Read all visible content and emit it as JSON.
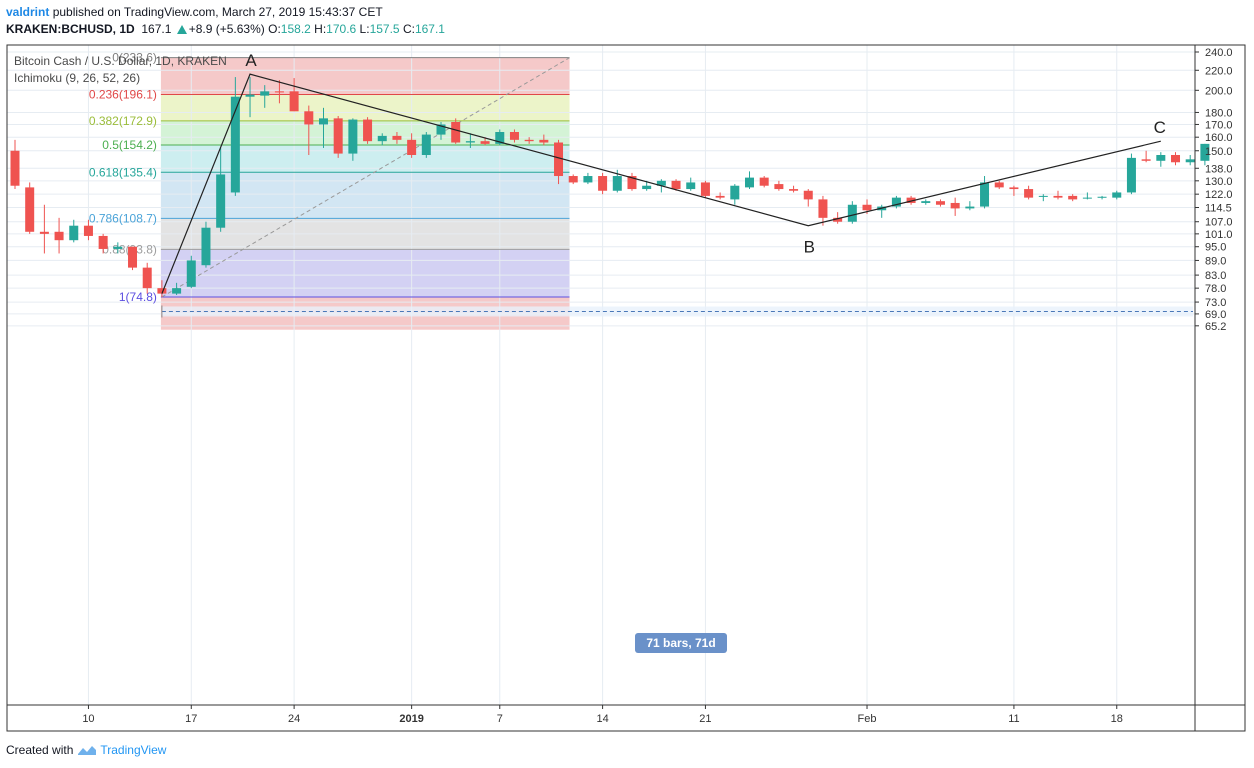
{
  "header": {
    "user": "valdrint",
    "published": "published on TradingView.com, March 27, 2019 15:43:37 CET",
    "symbol": "KRAKEN:BCHUSD, 1D",
    "last": "167.1",
    "change": "+8.9 (+5.63%)",
    "o_label": "O:",
    "o": "158.2",
    "h_label": "H:",
    "h": "170.6",
    "l_label": "L:",
    "l": "157.5",
    "c_label": "C:",
    "c": "167.1"
  },
  "legend": {
    "title": "Bitcoin Cash / U.S. Dollar, 1D, KRAKEN",
    "indicator": "Ichimoku (9, 26, 52, 26)"
  },
  "footer": {
    "created": "Created with",
    "brand": "TradingView"
  },
  "colors": {
    "up": "#26a69a",
    "down": "#ef5350",
    "fib_0": "#808080",
    "fib_0236": "#e04848",
    "fib_0382": "#9bbd3a",
    "fib_05": "#4caf50",
    "fib_0618": "#26a69a",
    "fib_0786": "#4aa3d8",
    "fib_088": "#9e9e9e",
    "fib_1": "#5c4ee0",
    "band_red": "#f5c9c9",
    "band_yellow": "#ecf4c9",
    "band_green": "#d4f3d6",
    "band_teal": "#cdeef0",
    "band_blue": "#d2e6f3",
    "band_gray": "#e3e3e3",
    "band_purple": "#d3d1f3",
    "label_bg": "#6a91c9"
  },
  "chart_data": {
    "type": "candlestick",
    "title": "Bitcoin Cash / U.S. Dollar, 1D, KRAKEN",
    "y_scale": "log",
    "ylim": [
      64,
      244
    ],
    "y_ticks": [
      "240.0",
      "220.0",
      "200.0",
      "180.0",
      "170.0",
      "160.0",
      "150.0",
      "138.0",
      "130.0",
      "122.0",
      "114.5",
      "107.0",
      "101.0",
      "95.0",
      "89.0",
      "83.0",
      "78.0",
      "73.0",
      "69.0",
      "65.2"
    ],
    "x_ticks": [
      {
        "label": "10",
        "bar": 5,
        "bold": false
      },
      {
        "label": "17",
        "bar": 12,
        "bold": false
      },
      {
        "label": "24",
        "bar": 19,
        "bold": false
      },
      {
        "label": "2019",
        "bar": 27,
        "bold": true
      },
      {
        "label": "7",
        "bar": 33,
        "bold": false
      },
      {
        "label": "14",
        "bar": 40,
        "bold": false
      },
      {
        "label": "21",
        "bar": 47,
        "bold": false
      },
      {
        "label": "Feb",
        "bar": 58,
        "bold": false
      },
      {
        "label": "11",
        "bar": 68,
        "bold": false
      },
      {
        "label": "18",
        "bar": 75,
        "bold": false
      }
    ],
    "candles": [
      {
        "date": "Dec 05",
        "o": 150.0,
        "h": 158.0,
        "l": 125.0,
        "c": 127.0
      },
      {
        "date": "Dec 06",
        "o": 126.0,
        "h": 129.0,
        "l": 101.0,
        "c": 102.0
      },
      {
        "date": "Dec 07",
        "o": 102.0,
        "h": 116.0,
        "l": 92.0,
        "c": 101.0
      },
      {
        "date": "Dec 08",
        "o": 102.0,
        "h": 109.0,
        "l": 92.0,
        "c": 98.0
      },
      {
        "date": "Dec 09",
        "o": 98.0,
        "h": 108.0,
        "l": 97.0,
        "c": 105.0
      },
      {
        "date": "Dec 10",
        "o": 105.0,
        "h": 108.0,
        "l": 98.0,
        "c": 100.0
      },
      {
        "date": "Dec 11",
        "o": 100.0,
        "h": 101.0,
        "l": 92.0,
        "c": 94.0
      },
      {
        "date": "Dec 12",
        "o": 94.0,
        "h": 97.0,
        "l": 92.0,
        "c": 95.0
      },
      {
        "date": "Dec 13",
        "o": 95.0,
        "h": 95.0,
        "l": 85.0,
        "c": 86.0
      },
      {
        "date": "Dec 14",
        "o": 86.0,
        "h": 88.0,
        "l": 76.0,
        "c": 78.0
      },
      {
        "date": "Dec 15",
        "o": 78.0,
        "h": 81.0,
        "l": 74.8,
        "c": 76.0
      },
      {
        "date": "Dec 16",
        "o": 76.0,
        "h": 80.0,
        "l": 75.5,
        "c": 78.0
      },
      {
        "date": "Dec 17",
        "o": 78.5,
        "h": 91.0,
        "l": 78.0,
        "c": 89.0
      },
      {
        "date": "Dec 18",
        "o": 87.0,
        "h": 107.0,
        "l": 86.0,
        "c": 104.0
      },
      {
        "date": "Dec 19",
        "o": 104.0,
        "h": 152.0,
        "l": 102.0,
        "c": 134.0
      },
      {
        "date": "Dec 20",
        "o": 123.0,
        "h": 213.0,
        "l": 121.0,
        "c": 194.0
      },
      {
        "date": "Dec 21",
        "o": 194.0,
        "h": 213.0,
        "l": 176.0,
        "c": 196.0
      },
      {
        "date": "Dec 22",
        "o": 195.0,
        "h": 205.0,
        "l": 184.0,
        "c": 199.0
      },
      {
        "date": "Dec 23",
        "o": 199.0,
        "h": 210.0,
        "l": 188.0,
        "c": 198.0
      },
      {
        "date": "Dec 24",
        "o": 199.0,
        "h": 212.0,
        "l": 181.0,
        "c": 181.0
      },
      {
        "date": "Dec 25",
        "o": 181.0,
        "h": 186.0,
        "l": 147.0,
        "c": 170.0
      },
      {
        "date": "Dec 26",
        "o": 170.0,
        "h": 184.0,
        "l": 152.0,
        "c": 175.0
      },
      {
        "date": "Dec 27",
        "o": 175.0,
        "h": 177.0,
        "l": 145.0,
        "c": 148.0
      },
      {
        "date": "Dec 28",
        "o": 148.0,
        "h": 175.0,
        "l": 143.0,
        "c": 174.0
      },
      {
        "date": "Dec 29",
        "o": 174.0,
        "h": 176.0,
        "l": 155.0,
        "c": 157.0
      },
      {
        "date": "Dec 30",
        "o": 157.0,
        "h": 163.0,
        "l": 154.0,
        "c": 161.0
      },
      {
        "date": "Dec 31",
        "o": 161.0,
        "h": 164.0,
        "l": 155.0,
        "c": 158.0
      },
      {
        "date": "Jan 01",
        "o": 158.0,
        "h": 163.0,
        "l": 145.0,
        "c": 147.0
      },
      {
        "date": "Jan 02",
        "o": 147.0,
        "h": 164.0,
        "l": 145.0,
        "c": 162.0
      },
      {
        "date": "Jan 03",
        "o": 162.0,
        "h": 172.0,
        "l": 158.0,
        "c": 170.0
      },
      {
        "date": "Jan 04",
        "o": 172.0,
        "h": 175.0,
        "l": 155.0,
        "c": 156.0
      },
      {
        "date": "Jan 05",
        "o": 156.0,
        "h": 163.0,
        "l": 152.0,
        "c": 157.0
      },
      {
        "date": "Jan 06",
        "o": 157.0,
        "h": 160.0,
        "l": 154.0,
        "c": 155.0
      },
      {
        "date": "Jan 07",
        "o": 155.0,
        "h": 166.0,
        "l": 154.0,
        "c": 164.0
      },
      {
        "date": "Jan 08",
        "o": 164.0,
        "h": 166.0,
        "l": 156.0,
        "c": 158.0
      },
      {
        "date": "Jan 09",
        "o": 158.0,
        "h": 160.0,
        "l": 155.0,
        "c": 157.0
      },
      {
        "date": "Jan 10",
        "o": 158.0,
        "h": 162.0,
        "l": 154.0,
        "c": 156.0
      },
      {
        "date": "Jan 11",
        "o": 156.0,
        "h": 158.0,
        "l": 128.0,
        "c": 133.0
      },
      {
        "date": "Jan 12",
        "o": 133.0,
        "h": 134.0,
        "l": 128.0,
        "c": 129.0
      },
      {
        "date": "Jan 13",
        "o": 129.0,
        "h": 135.0,
        "l": 128.0,
        "c": 133.0
      },
      {
        "date": "Jan 14",
        "o": 133.0,
        "h": 135.0,
        "l": 122.0,
        "c": 124.0
      },
      {
        "date": "Jan 15",
        "o": 124.0,
        "h": 137.0,
        "l": 123.0,
        "c": 133.0
      },
      {
        "date": "Jan 16",
        "o": 133.0,
        "h": 135.0,
        "l": 124.0,
        "c": 125.0
      },
      {
        "date": "Jan 17",
        "o": 125.0,
        "h": 130.0,
        "l": 124.0,
        "c": 127.0
      },
      {
        "date": "Jan 18",
        "o": 127.0,
        "h": 131.0,
        "l": 123.0,
        "c": 130.0
      },
      {
        "date": "Jan 19",
        "o": 130.0,
        "h": 131.0,
        "l": 124.0,
        "c": 125.0
      },
      {
        "date": "Jan 20",
        "o": 125.0,
        "h": 132.0,
        "l": 124.0,
        "c": 129.0
      },
      {
        "date": "Jan 21",
        "o": 129.0,
        "h": 130.0,
        "l": 120.0,
        "c": 121.0
      },
      {
        "date": "Jan 22",
        "o": 121.0,
        "h": 123.0,
        "l": 119.0,
        "c": 120.0
      },
      {
        "date": "Jan 23",
        "o": 119.0,
        "h": 128.0,
        "l": 116.0,
        "c": 127.0
      },
      {
        "date": "Jan 24",
        "o": 126.0,
        "h": 136.0,
        "l": 125.0,
        "c": 132.0
      },
      {
        "date": "Jan 25",
        "o": 132.0,
        "h": 133.0,
        "l": 126.0,
        "c": 127.0
      },
      {
        "date": "Jan 26",
        "o": 128.0,
        "h": 130.0,
        "l": 124.0,
        "c": 125.0
      },
      {
        "date": "Jan 27",
        "o": 125.0,
        "h": 127.0,
        "l": 123.0,
        "c": 124.0
      },
      {
        "date": "Jan 28",
        "o": 124.0,
        "h": 125.0,
        "l": 115.0,
        "c": 119.0
      },
      {
        "date": "Jan 29",
        "o": 119.0,
        "h": 121.0,
        "l": 105.0,
        "c": 109.0
      },
      {
        "date": "Jan 30",
        "o": 109.0,
        "h": 112.0,
        "l": 106.0,
        "c": 107.0
      },
      {
        "date": "Jan 31",
        "o": 107.0,
        "h": 118.0,
        "l": 106.0,
        "c": 116.0
      },
      {
        "date": "Feb 01",
        "o": 116.0,
        "h": 119.0,
        "l": 111.0,
        "c": 113.0
      },
      {
        "date": "Feb 02",
        "o": 113.0,
        "h": 116.0,
        "l": 109.0,
        "c": 115.0
      },
      {
        "date": "Feb 03",
        "o": 115.0,
        "h": 121.0,
        "l": 114.0,
        "c": 120.0
      },
      {
        "date": "Feb 04",
        "o": 120.0,
        "h": 121.0,
        "l": 116.0,
        "c": 117.0
      },
      {
        "date": "Feb 05",
        "o": 117.0,
        "h": 119.0,
        "l": 116.0,
        "c": 118.0
      },
      {
        "date": "Feb 06",
        "o": 118.0,
        "h": 119.0,
        "l": 115.0,
        "c": 116.0
      },
      {
        "date": "Feb 07",
        "o": 117.0,
        "h": 120.0,
        "l": 110.0,
        "c": 114.0
      },
      {
        "date": "Feb 08",
        "o": 114.0,
        "h": 118.0,
        "l": 113.0,
        "c": 115.0
      },
      {
        "date": "Feb 09",
        "o": 115.0,
        "h": 133.0,
        "l": 114.0,
        "c": 129.0
      },
      {
        "date": "Feb 10",
        "o": 129.0,
        "h": 130.0,
        "l": 125.0,
        "c": 126.0
      },
      {
        "date": "Feb 11",
        "o": 126.0,
        "h": 127.0,
        "l": 121.0,
        "c": 125.0
      },
      {
        "date": "Feb 12",
        "o": 125.0,
        "h": 127.0,
        "l": 119.0,
        "c": 120.0
      },
      {
        "date": "Feb 13",
        "o": 121.0,
        "h": 122.0,
        "l": 118.0,
        "c": 121.0
      },
      {
        "date": "Feb 14",
        "o": 121.0,
        "h": 124.0,
        "l": 119.0,
        "c": 120.0
      },
      {
        "date": "Feb 15",
        "o": 121.0,
        "h": 122.0,
        "l": 118.0,
        "c": 119.0
      },
      {
        "date": "Feb 16",
        "o": 120.0,
        "h": 123.0,
        "l": 119.0,
        "c": 120.0
      },
      {
        "date": "Feb 17",
        "o": 120.0,
        "h": 121.0,
        "l": 119.0,
        "c": 120.5
      },
      {
        "date": "Feb 18",
        "o": 120.0,
        "h": 124.0,
        "l": 119.0,
        "c": 123.0
      },
      {
        "date": "Feb 19",
        "o": 123.0,
        "h": 148.0,
        "l": 122.0,
        "c": 145.0
      },
      {
        "date": "Feb 20",
        "o": 144.0,
        "h": 150.0,
        "l": 142.0,
        "c": 143.0
      },
      {
        "date": "Feb 21",
        "o": 143.0,
        "h": 149.0,
        "l": 139.0,
        "c": 147.0
      },
      {
        "date": "Feb 22",
        "o": 147.0,
        "h": 149.0,
        "l": 140.0,
        "c": 142.0
      },
      {
        "date": "Feb 23",
        "o": 142.0,
        "h": 147.0,
        "l": 140.0,
        "c": 144.0
      },
      {
        "date": "Feb 24",
        "o": 143.0,
        "h": 155.0,
        "l": 140.0,
        "c": 155.0
      }
    ],
    "fibonacci": {
      "start_bar": 10,
      "end_bar": 37,
      "levels": [
        {
          "ratio": 0,
          "price": 233.6,
          "label": "0(233.6)",
          "color": "#808080",
          "fill": "#f5c9c9"
        },
        {
          "ratio": 0.236,
          "price": 196.1,
          "label": "0.236(196.1)",
          "color": "#e04848",
          "fill": "#ecf4c9"
        },
        {
          "ratio": 0.382,
          "price": 172.9,
          "label": "0.382(172.9)",
          "color": "#9bbd3a",
          "fill": "#d4f3d6"
        },
        {
          "ratio": 0.5,
          "price": 154.2,
          "label": "0.5(154.2)",
          "color": "#4caf50",
          "fill": "#cdeef0"
        },
        {
          "ratio": 0.618,
          "price": 135.4,
          "label": "0.618(135.4)",
          "color": "#26a69a",
          "fill": "#d2e6f3"
        },
        {
          "ratio": 0.786,
          "price": 108.7,
          "label": "0.786(108.7)",
          "color": "#4aa3d8",
          "fill": "#e3e3e3"
        },
        {
          "ratio": 0.88,
          "price": 93.8,
          "label": "0.88(93.8)",
          "color": "#9e9e9e",
          "fill": "#d3d1f3"
        },
        {
          "ratio": 1,
          "price": 74.8,
          "label": "1(74.8)",
          "color": "#5c4ee0",
          "fill": "#f5c9c9"
        }
      ],
      "below_price": 64
    },
    "pattern": [
      {
        "label": "",
        "bar": 10,
        "price": 76.0
      },
      {
        "label": "A",
        "bar": 16,
        "price": 216.0
      },
      {
        "label": "B",
        "bar": 54,
        "price": 105.0
      },
      {
        "label": "C",
        "bar": 78,
        "price": 157.0
      }
    ],
    "date_range": {
      "start_bar": 10,
      "end_bar": 81,
      "price": 69.8,
      "label": "71 bars, 71d"
    }
  }
}
